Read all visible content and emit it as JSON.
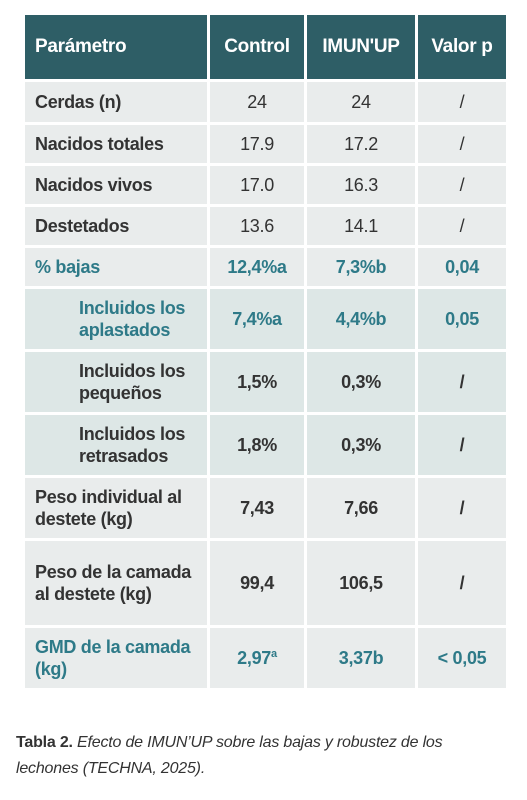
{
  "table": {
    "headers": [
      "Parámetro",
      "Control",
      "IMUN'UP",
      "Valor p"
    ],
    "rows": [
      {
        "param": "Cerdas (n)",
        "control": "24",
        "imunup": "24",
        "pvalue": "/"
      },
      {
        "param": "Nacidos totales",
        "control": "17.9",
        "imunup": "17.2",
        "pvalue": "/"
      },
      {
        "param": "Nacidos vivos",
        "control": "17.0",
        "imunup": "16.3",
        "pvalue": "/"
      },
      {
        "param": "Destetados",
        "control": "13.6",
        "imunup": "14.1",
        "pvalue": "/"
      },
      {
        "param": "% bajas",
        "control": "12,4%a",
        "imunup": "7,3%b",
        "pvalue": "0,04"
      },
      {
        "param": "Incluidos los aplastados",
        "control": "7,4%a",
        "imunup": "4,4%b",
        "pvalue": "0,05"
      },
      {
        "param": "Incluidos los pequeños",
        "control": "1,5%",
        "imunup": "0,3%",
        "pvalue": "/"
      },
      {
        "param": "Incluidos los retrasados",
        "control": "1,8%",
        "imunup": "0,3%",
        "pvalue": "/"
      },
      {
        "param": "Peso individual al destete (kg)",
        "control": "7,43",
        "imunup": "7,66",
        "pvalue": "/"
      },
      {
        "param": "Peso de la camada al destete (kg)",
        "control": "99,4",
        "imunup": "106,5",
        "pvalue": "/"
      },
      {
        "param": "GMD de la camada (kg)",
        "control": "2,97",
        "control_sup": "a",
        "imunup": "3,37b",
        "pvalue": "< 0,05"
      }
    ]
  },
  "caption": {
    "label": "Tabla 2.",
    "text": "Efecto de IMUN’UP sobre las bajas y robustez de los lechones (TECHNA, 2025)."
  },
  "colors": {
    "header_bg": "#2e5e66",
    "highlight_text": "#2e7a88",
    "cell_bg": "#e9ecec"
  }
}
